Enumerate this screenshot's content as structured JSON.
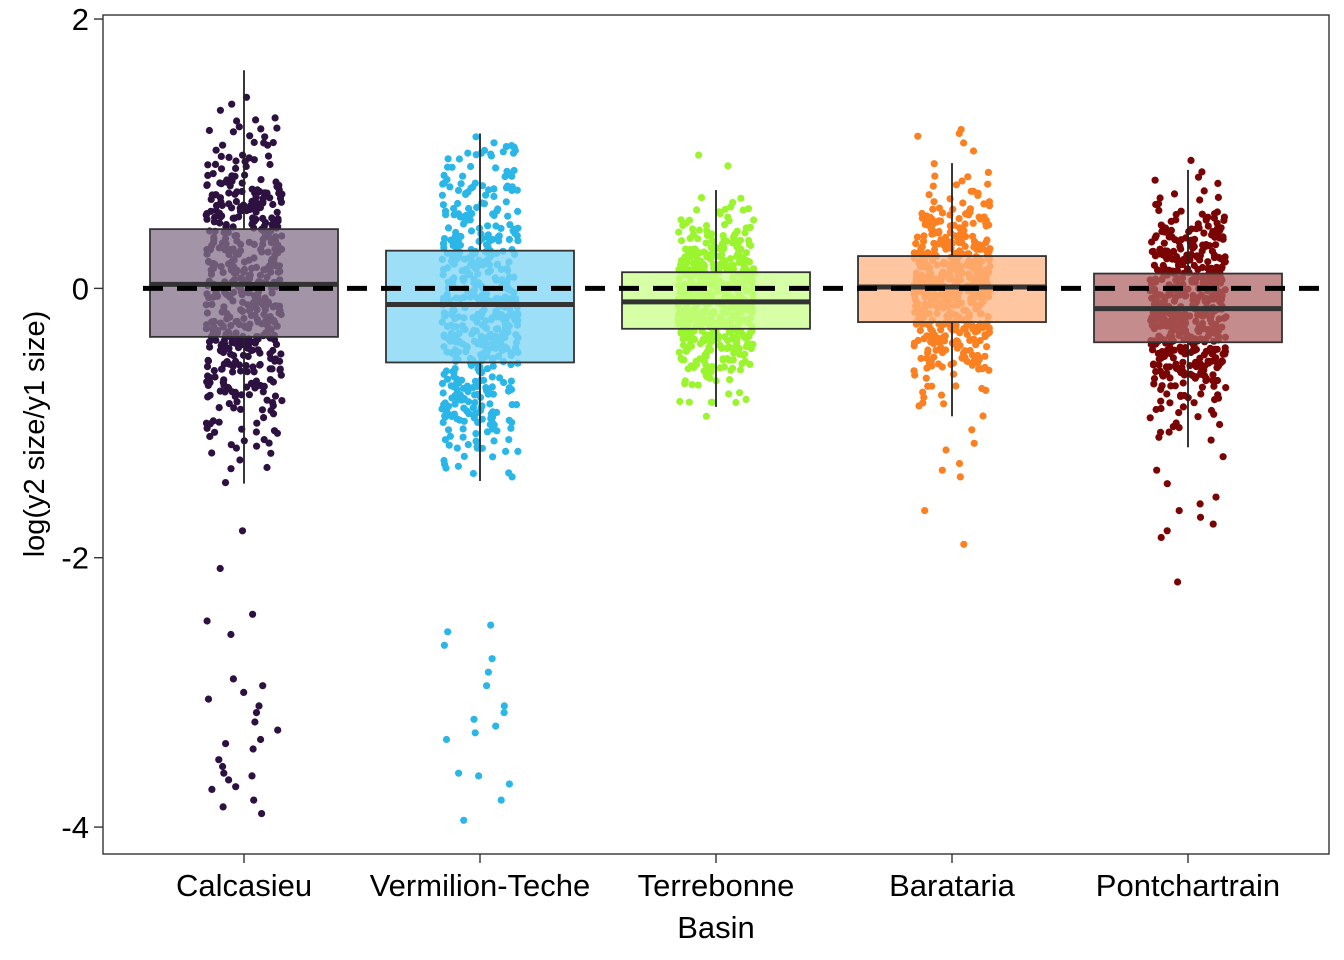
{
  "chart_data": {
    "type": "box",
    "title": "",
    "xlabel": "Basin",
    "ylabel": "log(y2 size/y1 size)",
    "ylim": [
      -4.2,
      2.03
    ],
    "yticks": [
      2,
      0,
      -2,
      -4
    ],
    "ytick_labels": [
      "2",
      "0",
      "-2",
      "-4"
    ],
    "reference_line": 0,
    "grid": false,
    "legend": "none",
    "categories": [
      "Calcasieu",
      "Vermilion-Teche",
      "Terrebonne",
      "Barataria",
      "Pontchartrain"
    ],
    "series": [
      {
        "category": "Calcasieu",
        "color": "#2d1140",
        "fill": "#84718a",
        "box": {
          "q1": -0.36,
          "median": 0.03,
          "q3": 0.44,
          "whisker_low": -1.45,
          "whisker_high": 1.62
        },
        "outliers": [
          -1.8,
          -2.08,
          -2.42,
          -2.47,
          -2.57,
          -2.9,
          -2.95,
          -3.0,
          -3.05,
          -3.1,
          -3.15,
          -3.22,
          -3.28,
          -3.35,
          -3.38,
          -3.42,
          -3.5,
          -3.55,
          -3.6,
          -3.62,
          -3.65,
          -3.7,
          -3.72,
          -3.8,
          -3.85,
          -3.9
        ],
        "n_points": 520
      },
      {
        "category": "Vermilion-Teche",
        "color": "#2ab7e8",
        "fill": "#7dd4f5",
        "box": {
          "q1": -0.55,
          "median": -0.12,
          "q3": 0.28,
          "whisker_low": -1.43,
          "whisker_high": 1.15
        },
        "outliers": [
          -2.5,
          -2.55,
          -2.65,
          -2.75,
          -2.85,
          -2.95,
          -3.1,
          -3.15,
          -3.2,
          -3.25,
          -3.3,
          -3.35,
          -3.6,
          -3.62,
          -3.68,
          -3.8,
          -3.95
        ],
        "n_points": 520
      },
      {
        "category": "Terrebonne",
        "color": "#9bf52e",
        "fill": "#c9ff8a",
        "box": {
          "q1": -0.3,
          "median": -0.1,
          "q3": 0.12,
          "whisker_low": -0.88,
          "whisker_high": 0.73
        },
        "outliers": [
          0.91,
          0.99,
          -0.95
        ],
        "n_points": 520
      },
      {
        "category": "Barataria",
        "color": "#fb8022",
        "fill": "#fdb482",
        "box": {
          "q1": -0.25,
          "median": 0.01,
          "q3": 0.24,
          "whisker_low": -0.95,
          "whisker_high": 0.93
        },
        "outliers": [
          1.02,
          1.08,
          1.13,
          1.15,
          1.18,
          -1.05,
          -1.15,
          -1.2,
          -1.3,
          -1.35,
          -1.4,
          -1.65,
          -1.9
        ],
        "n_points": 520
      },
      {
        "category": "Pontchartrain",
        "color": "#7a0403",
        "fill": "#b06565",
        "box": {
          "q1": -0.4,
          "median": -0.15,
          "q3": 0.11,
          "whisker_low": -1.18,
          "whisker_high": 0.88
        },
        "outliers": [
          0.95,
          -1.25,
          -1.35,
          -1.45,
          -1.55,
          -1.6,
          -1.65,
          -1.7,
          -1.75,
          -1.8,
          -1.85,
          -2.18
        ],
        "n_points": 520
      }
    ]
  }
}
